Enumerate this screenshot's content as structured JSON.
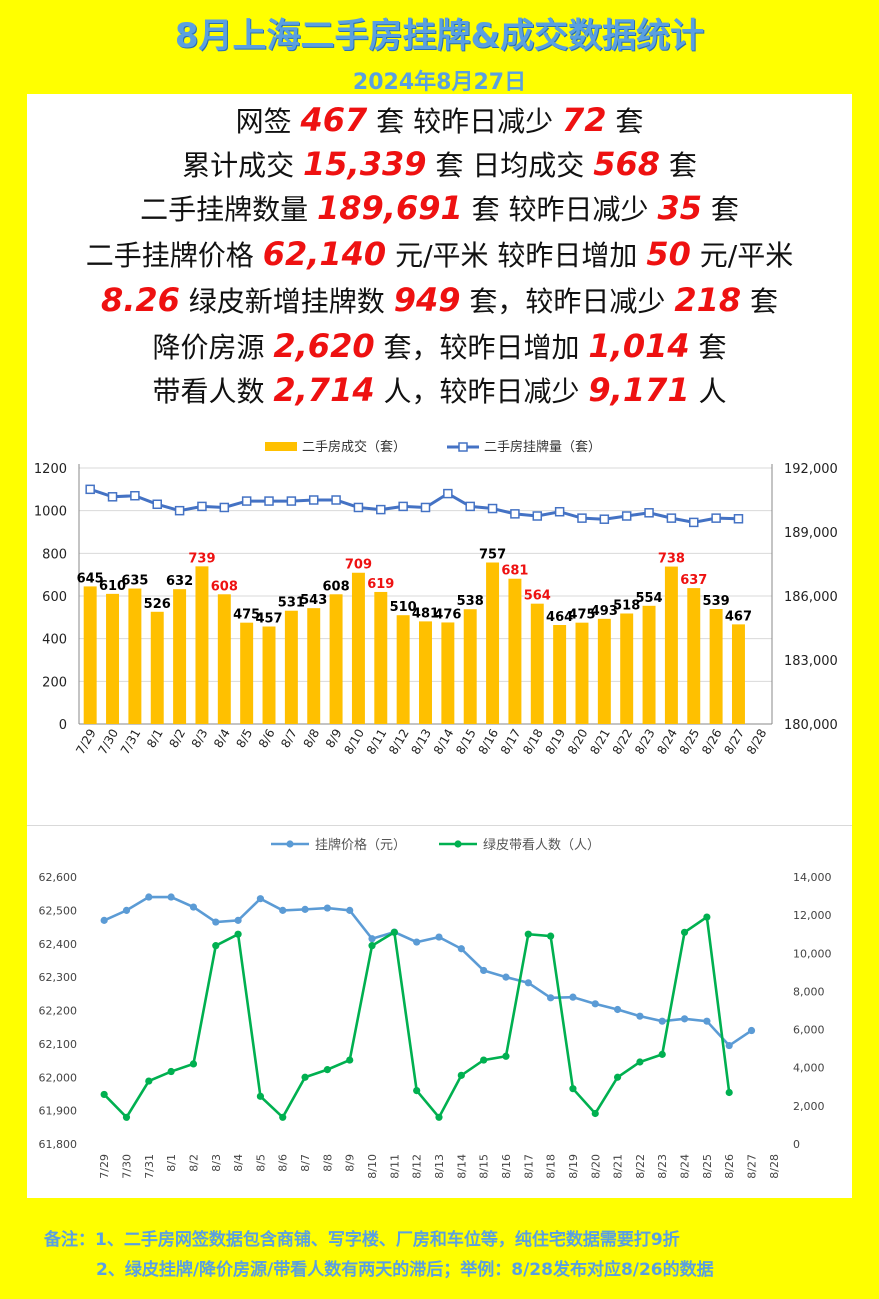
{
  "header": {
    "title": "8月上海二手房挂牌&成交数据统计",
    "date": "2024年8月27日"
  },
  "stats": [
    {
      "parts": [
        {
          "t": "网签 "
        },
        {
          "n": "467"
        },
        {
          "t": " 套 较昨日减少 "
        },
        {
          "n": "72"
        },
        {
          "t": " 套"
        }
      ]
    },
    {
      "parts": [
        {
          "t": "累计成交 "
        },
        {
          "n": "15,339"
        },
        {
          "t": " 套 日均成交 "
        },
        {
          "n": "568"
        },
        {
          "t": " 套"
        }
      ]
    },
    {
      "parts": [
        {
          "t": "二手挂牌数量 "
        },
        {
          "n": "189,691"
        },
        {
          "t": " 套 较昨日减少 "
        },
        {
          "n": "35"
        },
        {
          "t": " 套"
        }
      ]
    },
    {
      "parts": [
        {
          "t": "二手挂牌价格 "
        },
        {
          "n": "62,140"
        },
        {
          "t": " 元/平米 较昨日增加 "
        },
        {
          "n": "50"
        },
        {
          "t": " 元/平米"
        }
      ]
    },
    {
      "parts": [
        {
          "n": "8.26"
        },
        {
          "t": " 绿皮新增挂牌数 "
        },
        {
          "n": "949"
        },
        {
          "t": " 套，较昨日减少 "
        },
        {
          "n": "218"
        },
        {
          "t": " 套"
        }
      ]
    },
    {
      "parts": [
        {
          "t": "降价房源 "
        },
        {
          "n": "2,620"
        },
        {
          "t": " 套，较昨日增加 "
        },
        {
          "n": "1,014"
        },
        {
          "t": " 套"
        }
      ]
    },
    {
      "parts": [
        {
          "t": "带看人数 "
        },
        {
          "n": "2,714"
        },
        {
          "t": " 人，较昨日减少 "
        },
        {
          "n": "9,171"
        },
        {
          "t": " 人"
        }
      ]
    }
  ],
  "chart_data": [
    {
      "type": "bar",
      "categories": [
        "7/29",
        "7/30",
        "7/31",
        "8/1",
        "8/2",
        "8/3",
        "8/4",
        "8/5",
        "8/6",
        "8/7",
        "8/8",
        "8/9",
        "8/10",
        "8/11",
        "8/12",
        "8/13",
        "8/14",
        "8/15",
        "8/16",
        "8/17",
        "8/18",
        "8/19",
        "8/20",
        "8/21",
        "8/22",
        "8/23",
        "8/24",
        "8/25",
        "8/26",
        "8/27",
        "8/28"
      ],
      "series": [
        {
          "name": "二手房成交（套）",
          "axis": "left",
          "kind": "bar",
          "color": "#ffc000",
          "values": [
            645,
            610,
            635,
            526,
            632,
            739,
            608,
            475,
            457,
            531,
            543,
            608,
            709,
            619,
            510,
            481,
            476,
            538,
            757,
            681,
            564,
            464,
            475,
            493,
            518,
            554,
            738,
            637,
            539,
            467,
            null
          ],
          "label_colors": [
            "#000",
            "#000",
            "#000",
            "#000",
            "#000",
            "#ee1111",
            "#ee1111",
            "#000",
            "#000",
            "#000",
            "#000",
            "#000",
            "#ee1111",
            "#ee1111",
            "#000",
            "#000",
            "#000",
            "#000",
            "#000",
            "#ee1111",
            "#ee1111",
            "#000",
            "#000",
            "#000",
            "#000",
            "#000",
            "#ee1111",
            "#ee1111",
            "#000",
            "#000",
            "#000"
          ]
        },
        {
          "name": "二手房挂牌量（套）",
          "axis": "right",
          "kind": "line",
          "color": "#4472c4",
          "values": [
            191000,
            190650,
            190700,
            190300,
            190000,
            190200,
            190150,
            190450,
            190450,
            190450,
            190500,
            190500,
            190150,
            190050,
            190200,
            190150,
            190800,
            190200,
            190100,
            189850,
            189750,
            189950,
            189650,
            189600,
            189750,
            189900,
            189650,
            189450,
            189650,
            189620,
            null
          ]
        }
      ],
      "ylim_left": [
        0,
        1200
      ],
      "yticks_left": [
        0,
        200,
        400,
        600,
        800,
        1000,
        1200
      ],
      "ylim_right": [
        180000,
        192000
      ],
      "yticks_right": [
        180000,
        183000,
        186000,
        189000,
        192000
      ],
      "grid": true,
      "legend": "top"
    },
    {
      "type": "line",
      "categories": [
        "7/29",
        "7/30",
        "7/31",
        "8/1",
        "8/2",
        "8/3",
        "8/4",
        "8/5",
        "8/6",
        "8/7",
        "8/8",
        "8/9",
        "8/10",
        "8/11",
        "8/12",
        "8/13",
        "8/14",
        "8/15",
        "8/16",
        "8/17",
        "8/18",
        "8/19",
        "8/20",
        "8/21",
        "8/22",
        "8/23",
        "8/24",
        "8/25",
        "8/26",
        "8/27",
        "8/28"
      ],
      "series": [
        {
          "name": "挂牌价格（元）",
          "axis": "left",
          "color": "#5b9bd5",
          "values": [
            62470,
            62500,
            62540,
            62540,
            62510,
            62465,
            62470,
            62535,
            62500,
            62503,
            62507,
            62500,
            62415,
            62435,
            62405,
            62420,
            62385,
            62320,
            62300,
            62283,
            62238,
            62240,
            62220,
            62203,
            62183,
            62168,
            62175,
            62168,
            62095,
            62140,
            null
          ]
        },
        {
          "name": "绿皮带看人数（人）",
          "axis": "right",
          "color": "#00b050",
          "values": [
            2600,
            1400,
            3300,
            3800,
            4200,
            10400,
            11000,
            2500,
            1400,
            3500,
            3900,
            4400,
            10400,
            11100,
            2800,
            1400,
            3600,
            4400,
            4600,
            11000,
            10900,
            2900,
            1600,
            3500,
            4300,
            4700,
            11100,
            11900,
            2700,
            null,
            null
          ]
        }
      ],
      "ylim_left": [
        61800,
        62600
      ],
      "yticks_left": [
        61800,
        61900,
        62000,
        62100,
        62200,
        62300,
        62400,
        62500,
        62600
      ],
      "ylim_right": [
        0,
        14000
      ],
      "yticks_right": [
        0,
        2000,
        4000,
        6000,
        8000,
        10000,
        12000,
        14000
      ],
      "grid": false,
      "legend": "top"
    }
  ],
  "notes": [
    "备注：1、二手房网签数据包含商铺、写字楼、厂房和车位等，纯住宅数据需要打9折",
    "2、绿皮挂牌/降价房源/带看人数有两天的滞后；举例：8/28发布对应8/26的数据"
  ],
  "colors": {
    "background": "#ffff00",
    "accent_text": "#5aa0e0",
    "highlight": "#ee1111"
  }
}
